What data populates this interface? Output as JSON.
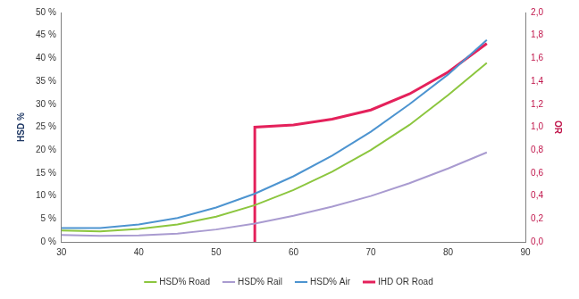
{
  "chart_data": {
    "type": "line",
    "y_label": "HSD %",
    "y2_label": "OR",
    "xlim": [
      30,
      90
    ],
    "xticks": [
      30,
      40,
      50,
      60,
      70,
      80,
      90
    ],
    "ylim": [
      0,
      50
    ],
    "yticks": [
      {
        "value": 0,
        "label": "0 %"
      },
      {
        "value": 5,
        "label": "5 %"
      },
      {
        "value": 10,
        "label": "10 %"
      },
      {
        "value": 15,
        "label": "15 %"
      },
      {
        "value": 20,
        "label": "20 %"
      },
      {
        "value": 25,
        "label": "25 %"
      },
      {
        "value": 30,
        "label": "30 %"
      },
      {
        "value": 35,
        "label": "35 %"
      },
      {
        "value": 40,
        "label": "40 %"
      },
      {
        "value": 45,
        "label": "45 %"
      },
      {
        "value": 50,
        "label": "50 %"
      }
    ],
    "y2lim": [
      0,
      2
    ],
    "y2ticks": [
      {
        "value": 0,
        "label": "0,0"
      },
      {
        "value": 0.2,
        "label": "0,2"
      },
      {
        "value": 0.4,
        "label": "0,4"
      },
      {
        "value": 0.6,
        "label": "0,6"
      },
      {
        "value": 0.8,
        "label": "0,8"
      },
      {
        "value": 1,
        "label": "1,0"
      },
      {
        "value": 1.2,
        "label": "1,2"
      },
      {
        "value": 1.4,
        "label": "1,4"
      },
      {
        "value": 1.6,
        "label": "1,6"
      },
      {
        "value": 1.8,
        "label": "1,8"
      },
      {
        "value": 2,
        "label": "2,0"
      }
    ],
    "grid": false,
    "legend": "bottom",
    "series": [
      {
        "name": "HSD% Road",
        "color": "#8cc63f",
        "x": [
          30,
          35,
          40,
          45,
          50,
          55,
          60,
          65,
          70,
          75,
          80,
          85
        ],
        "values": [
          2.5,
          2.3,
          2.8,
          3.8,
          5.5,
          8,
          11.3,
          15.3,
          20,
          25.5,
          32,
          39
        ]
      },
      {
        "name": "HSD% Rail",
        "color": "#a99bd0",
        "x": [
          30,
          35,
          40,
          45,
          50,
          55,
          60,
          65,
          70,
          75,
          80,
          85
        ],
        "values": [
          1.5,
          1.3,
          1.4,
          1.8,
          2.7,
          4,
          5.7,
          7.7,
          10,
          12.8,
          16,
          19.5
        ]
      },
      {
        "name": "HSD% Air",
        "color": "#4d94d0",
        "x": [
          30,
          35,
          40,
          45,
          50,
          55,
          60,
          65,
          70,
          75,
          80,
          85
        ],
        "values": [
          3,
          3,
          3.8,
          5.2,
          7.5,
          10.5,
          14.3,
          18.8,
          24,
          30,
          36.5,
          44
        ]
      },
      {
        "name": "IHD OR Road",
        "color": "#e4215b",
        "axis": "y2",
        "x": [
          55,
          55,
          60,
          65,
          70,
          75,
          80,
          85
        ],
        "values": [
          0,
          1,
          1.02,
          1.07,
          1.15,
          1.29,
          1.48,
          1.73
        ]
      }
    ]
  }
}
